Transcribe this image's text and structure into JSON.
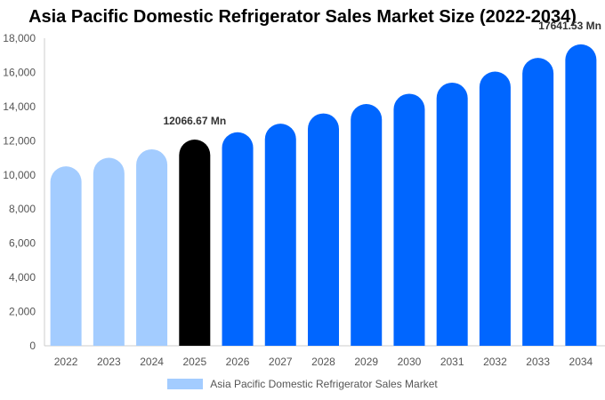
{
  "chart_data": {
    "type": "bar",
    "title": "Asia Pacific Domestic Refrigerator Sales Market Size (2022-2034)",
    "categories": [
      "2022",
      "2023",
      "2024",
      "2025",
      "2026",
      "2027",
      "2028",
      "2029",
      "2030",
      "2031",
      "2032",
      "2033",
      "2034"
    ],
    "series": [
      {
        "name": "Asia Pacific Domestic Refrigerator Sales Market",
        "values": [
          10500,
          11000,
          11500,
          12066.67,
          12500,
          13000,
          13600,
          14150,
          14750,
          15400,
          16050,
          16850,
          17641.53
        ]
      }
    ],
    "ylim": [
      0,
      18000
    ],
    "yticks": [
      "0",
      "2,000",
      "4,000",
      "6,000",
      "8,000",
      "10,000",
      "12,000",
      "14,000",
      "16,000",
      "18,000"
    ],
    "annotations": [
      {
        "category": "2025",
        "text": "12066.67 Mn"
      },
      {
        "category": "2034",
        "text": "17641.53 Mn"
      }
    ],
    "colors": {
      "historic": "#a3ccff",
      "current": "#000000",
      "forecast": "#0066ff"
    },
    "current_year": "2025",
    "legend_position": "bottom",
    "grid": false
  }
}
